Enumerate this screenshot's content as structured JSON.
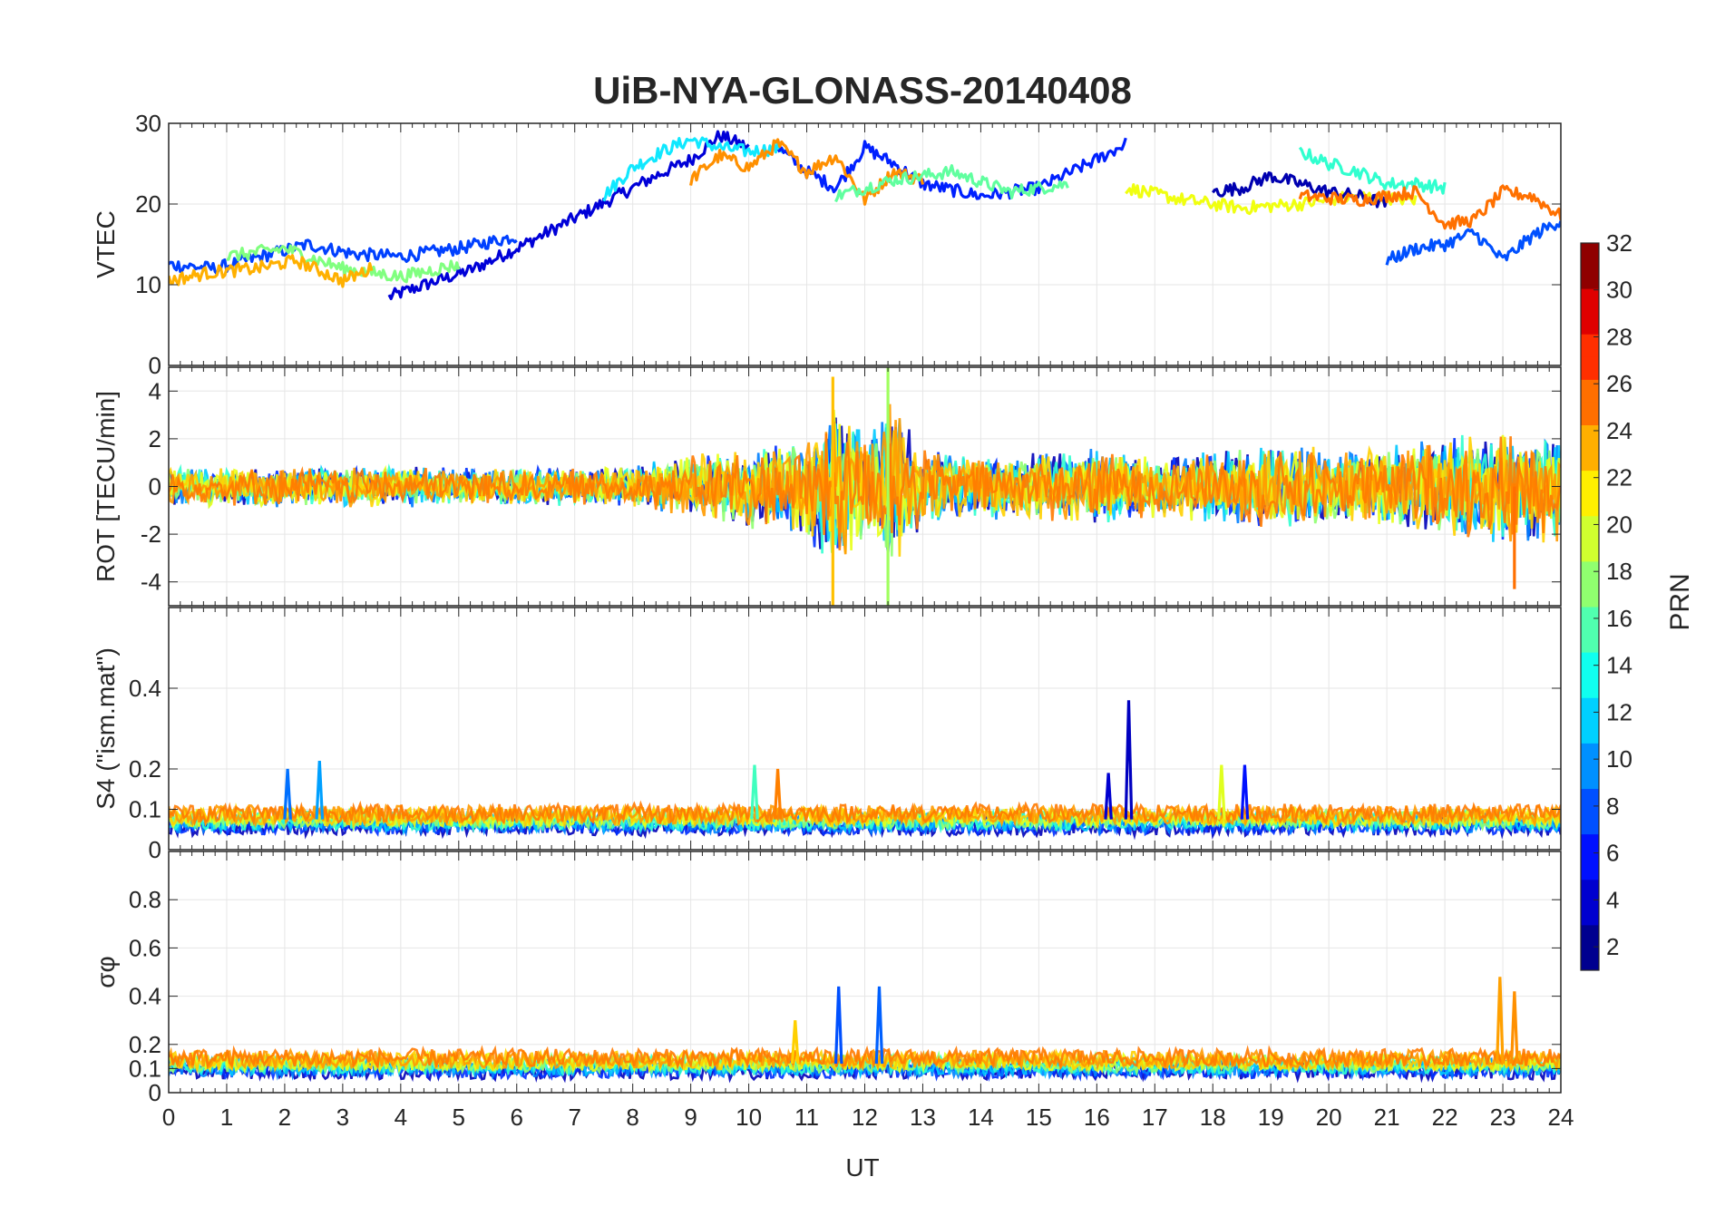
{
  "chart_data": {
    "title": "UiB-NYA-GLONASS-20140408",
    "type": "line",
    "xlabel": "UT",
    "xlim": [
      0,
      24
    ],
    "x_ticks": [
      "0",
      "1",
      "2",
      "3",
      "4",
      "5",
      "6",
      "7",
      "8",
      "9",
      "10",
      "11",
      "12",
      "13",
      "14",
      "15",
      "16",
      "17",
      "18",
      "19",
      "20",
      "21",
      "22",
      "23",
      "24"
    ],
    "grid": true,
    "colorbar": {
      "label": "PRN",
      "range": [
        1,
        32
      ],
      "colormap": "jet",
      "ticks": [
        "2",
        "4",
        "6",
        "8",
        "10",
        "12",
        "14",
        "16",
        "18",
        "20",
        "22",
        "24",
        "26",
        "28",
        "30",
        "32"
      ],
      "placement": "right"
    },
    "panels": [
      {
        "name": "vtec",
        "ylabel": "VTEC",
        "ylim": [
          0,
          30
        ],
        "y_ticks": [
          0,
          10,
          20,
          30
        ],
        "y_tick_labels": [
          "0",
          "10",
          "20",
          "30"
        ],
        "series": [
          {
            "prn": 3,
            "color": "#0000d8",
            "x": [
              3.8,
              4.5,
              5.2,
              6.0,
              6.8,
              7.6,
              8.4,
              9.0,
              9.5,
              10.0
            ],
            "y": [
              8.5,
              10.2,
              11.8,
              14.5,
              17.5,
              20.5,
              23.5,
              25.5,
              28.5,
              27.0
            ]
          },
          {
            "prn": 6,
            "color": "#0040ff",
            "x": [
              0.0,
              0.8,
              1.6,
              2.4,
              3.2,
              4.0,
              5.0,
              6.0
            ],
            "y": [
              12.5,
              12.0,
              13.5,
              15.0,
              13.8,
              13.5,
              14.5,
              16.0
            ]
          },
          {
            "prn": 12,
            "color": "#10e8ff",
            "x": [
              7.5,
              8.0,
              8.5,
              9.0,
              9.5,
              10.0,
              10.6
            ],
            "y": [
              21.0,
              24.5,
              26.5,
              28.0,
              27.0,
              26.5,
              27.0
            ]
          },
          {
            "prn": 5,
            "color": "#0020ff",
            "x": [
              10.5,
              11.0,
              11.5,
              12.0,
              12.5,
              13.0,
              14.0,
              15.0,
              16.0,
              16.5
            ],
            "y": [
              27.0,
              24.0,
              22.0,
              27.0,
              25.0,
              22.5,
              21.0,
              22.0,
              25.5,
              27.5
            ]
          },
          {
            "prn": 23,
            "color": "#ff9000",
            "x": [
              9.0,
              9.5,
              10.0,
              10.5,
              11.0,
              11.5,
              12.0,
              12.5,
              13.0
            ],
            "y": [
              23.0,
              26.0,
              24.5,
              27.5,
              24.0,
              26.0,
              20.5,
              24.0,
              23.0
            ]
          },
          {
            "prn": 15,
            "color": "#60ff9f",
            "x": [
              11.5,
              12.5,
              13.5,
              14.5,
              15.5
            ],
            "y": [
              21.0,
              23.0,
              24.0,
              21.5,
              22.5
            ]
          },
          {
            "prn": 20,
            "color": "#f0ff10",
            "x": [
              16.5,
              17.5,
              18.5,
              19.5,
              20.5,
              21.5
            ],
            "y": [
              22.0,
              20.5,
              19.5,
              20.0,
              21.0,
              20.5
            ]
          },
          {
            "prn": 2,
            "color": "#0000b0",
            "x": [
              18.0,
              18.5,
              19.0,
              19.5,
              20.0,
              20.5,
              21.0
            ],
            "y": [
              21.5,
              22.0,
              23.5,
              22.5,
              21.5,
              21.0,
              20.0
            ]
          },
          {
            "prn": 13,
            "color": "#30ffcf",
            "x": [
              19.5,
              20.0,
              20.5,
              21.0,
              21.5,
              22.0
            ],
            "y": [
              26.5,
              25.0,
              24.0,
              22.5,
              22.5,
              22.0
            ]
          },
          {
            "prn": 24,
            "color": "#ff7000",
            "x": [
              19.5,
              20.5,
              21.5,
              22.0,
              22.5,
              23.0,
              23.5,
              24.0
            ],
            "y": [
              21.0,
              20.5,
              21.5,
              17.5,
              18.0,
              21.5,
              21.0,
              18.5
            ]
          },
          {
            "prn": 7,
            "color": "#0050ff",
            "x": [
              21.0,
              21.5,
              22.0,
              22.5,
              23.0,
              23.5,
              24.0
            ],
            "y": [
              13.0,
              14.5,
              15.0,
              16.5,
              13.0,
              16.0,
              18.0
            ]
          },
          {
            "prn": 17,
            "color": "#80ff7f",
            "x": [
              1.0,
              2.0,
              3.0,
              4.0,
              5.0
            ],
            "y": [
              13.5,
              14.5,
              12.0,
              11.0,
              12.5
            ]
          },
          {
            "prn": 22,
            "color": "#ffb000",
            "x": [
              0.0,
              0.7,
              1.5,
              2.2,
              3.0,
              3.5
            ],
            "y": [
              10.5,
              11.5,
              12.0,
              13.0,
              10.5,
              12.0
            ]
          }
        ]
      },
      {
        "name": "rot",
        "ylabel": "ROT [TECU/min]",
        "ylim": [
          -5,
          5
        ],
        "y_ticks": [
          -4,
          -2,
          0,
          2,
          4
        ],
        "y_tick_labels": [
          "-4",
          "-2",
          "0",
          "2",
          "4"
        ],
        "envelope": {
          "hours": [
            0,
            2,
            4,
            6,
            8,
            9,
            10,
            11,
            11.5,
            12,
            12.5,
            13,
            14,
            15,
            16,
            17,
            18,
            19,
            20,
            21,
            22,
            23,
            24
          ],
          "amplitude": [
            0.8,
            0.9,
            0.9,
            0.8,
            0.9,
            1.4,
            1.8,
            2.2,
            3.8,
            2.5,
            4.0,
            1.6,
            1.4,
            1.6,
            1.6,
            1.4,
            1.6,
            1.9,
            1.7,
            1.8,
            2.2,
            2.6,
            2.4
          ]
        },
        "peaks": [
          {
            "x": 11.45,
            "y": 4.6,
            "color": "#ffc000"
          },
          {
            "x": 11.45,
            "y": -5.0,
            "color": "#ffc000"
          },
          {
            "x": 12.4,
            "y": 5.0,
            "color": "#a0ff5f"
          },
          {
            "x": 12.4,
            "y": -5.0,
            "color": "#a0ff5f"
          },
          {
            "x": 23.2,
            "y": -4.3,
            "color": "#ff7000"
          }
        ]
      },
      {
        "name": "s4",
        "ylabel": "S4 (\"ism.mat\")",
        "ylim": [
          0,
          0.6
        ],
        "y_ticks": [
          0,
          0.1,
          0.2,
          0.4
        ],
        "y_tick_labels": [
          "0",
          "0.1",
          "0.2",
          "0.4"
        ],
        "baseline": 0.075,
        "peaks": [
          {
            "x": 2.05,
            "y": 0.2,
            "color": "#0070ff"
          },
          {
            "x": 2.6,
            "y": 0.22,
            "color": "#00a0ff"
          },
          {
            "x": 10.1,
            "y": 0.21,
            "color": "#40ffbf"
          },
          {
            "x": 10.5,
            "y": 0.2,
            "color": "#ff8000"
          },
          {
            "x": 16.2,
            "y": 0.19,
            "color": "#0000d0"
          },
          {
            "x": 16.55,
            "y": 0.37,
            "color": "#0000c0"
          },
          {
            "x": 18.15,
            "y": 0.21,
            "color": "#e0ff20"
          },
          {
            "x": 18.55,
            "y": 0.21,
            "color": "#0010ff"
          }
        ]
      },
      {
        "name": "sigma-phi",
        "ylabel": "σφ",
        "ylim": [
          0,
          1
        ],
        "y_ticks": [
          0,
          0.1,
          0.2,
          0.4,
          0.6,
          0.8
        ],
        "y_tick_labels": [
          "0",
          "0.1",
          "0.2",
          "0.4",
          "0.6",
          "0.8"
        ],
        "baseline": 0.12,
        "peaks": [
          {
            "x": 10.8,
            "y": 0.3,
            "color": "#ffd000"
          },
          {
            "x": 11.55,
            "y": 0.44,
            "color": "#0050ff"
          },
          {
            "x": 12.25,
            "y": 0.44,
            "color": "#0060ff"
          },
          {
            "x": 22.95,
            "y": 0.48,
            "color": "#ffa000"
          },
          {
            "x": 23.2,
            "y": 0.42,
            "color": "#ff9000"
          }
        ]
      }
    ]
  }
}
